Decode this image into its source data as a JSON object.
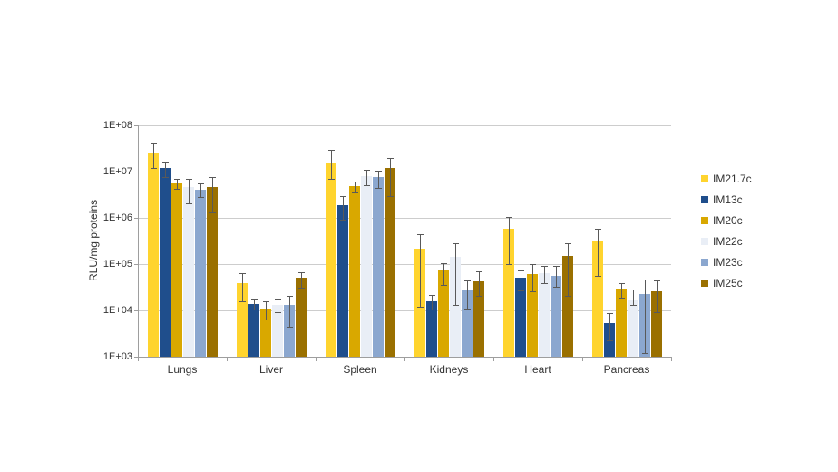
{
  "chart_data": {
    "type": "bar",
    "title": "",
    "xlabel": "",
    "ylabel": "RLU/mg proteins",
    "y_scale": "log",
    "ylim": [
      1000,
      100000000
    ],
    "ytick_labels": [
      "1E+08",
      "1E+07",
      "1E+06",
      "1E+05",
      "1E+04",
      "1E+03"
    ],
    "grid": "horizontal",
    "legend_position": "right",
    "error_bars": true,
    "error_bar_color": "#595959",
    "gridline_color": "#cdcdcd",
    "axis_color": "#9e9e9e",
    "categories": [
      "Lungs",
      "Liver",
      "Spleen",
      "Kidneys",
      "Heart",
      "Pancreas"
    ],
    "series": [
      {
        "name": "IM21.7c",
        "color": "#FFD42E",
        "values": [
          25000000.0,
          39000.0,
          15000000.0,
          220000.0,
          580000.0,
          320000.0
        ],
        "err_lo": [
          12000000.0,
          16000.0,
          7000000.0,
          12000.0,
          100000.0,
          56000.0
        ],
        "err_hi": [
          40000000.0,
          63000.0,
          30000000.0,
          440000.0,
          1050000.0,
          580000.0
        ]
      },
      {
        "name": "IM13c",
        "color": "#1F4E8C",
        "values": [
          12000000.0,
          14000.0,
          1900000.0,
          16000.0,
          50000.0,
          5200.0
        ],
        "err_lo": [
          7600000.0,
          10500.0,
          900000.0,
          10500.0,
          27000.0,
          2300.0
        ],
        "err_hi": [
          15500000.0,
          18000.0,
          2900000.0,
          22000.0,
          72000.0,
          8700.0
        ]
      },
      {
        "name": "IM20c",
        "color": "#D9A800",
        "values": [
          5600000.0,
          11000.0,
          4800000.0,
          72000.0,
          62000.0,
          29000.0
        ],
        "err_lo": [
          4300000.0,
          6500.0,
          3500000.0,
          35000.0,
          26000.0,
          19000.0
        ],
        "err_hi": [
          7000000.0,
          16000.0,
          6000000.0,
          105000.0,
          100000.0,
          39000.0
        ]
      },
      {
        "name": "IM22c",
        "color": "#E9EEF6",
        "values": [
          4700000.0,
          13000.0,
          8000000.0,
          145000.0,
          63000.0,
          17500.0
        ],
        "err_lo": [
          2100000.0,
          9000.0,
          5000000.0,
          13000.0,
          38000.0,
          13000.0
        ],
        "err_hi": [
          6900000.0,
          18000.0,
          11000000.0,
          280000.0,
          93000.0,
          28500.0
        ]
      },
      {
        "name": "IM23c",
        "color": "#8BA7CF",
        "values": [
          4000000.0,
          13000.0,
          7500000.0,
          27000.0,
          56000.0,
          23000.0
        ],
        "err_lo": [
          2800000.0,
          4500.0,
          4500000.0,
          11000.0,
          32000.0,
          1200.0
        ],
        "err_hi": [
          5500000.0,
          21000.0,
          10500000.0,
          44000.0,
          90000.0,
          46000.0
        ]
      },
      {
        "name": "IM25c",
        "color": "#9A7000",
        "values": [
          4700000.0,
          50000.0,
          12000000.0,
          42000.0,
          150000.0,
          26000.0
        ],
        "err_lo": [
          1300000.0,
          31000.0,
          2900000.0,
          21000.0,
          21000.0,
          9300.0
        ],
        "err_hi": [
          7700000.0,
          68000.0,
          20000000.0,
          70000.0,
          280000.0,
          45000.0
        ]
      }
    ]
  }
}
